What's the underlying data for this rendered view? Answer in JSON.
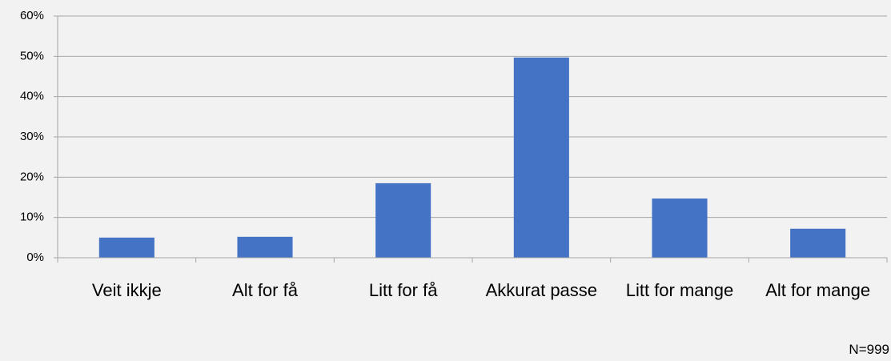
{
  "chart_data": {
    "type": "bar",
    "categories": [
      "Veit ikkje",
      "Alt for få",
      "Litt for få",
      "Akkurat passe",
      "Litt for mange",
      "Alt for mange"
    ],
    "values": [
      5.0,
      5.2,
      18.5,
      49.7,
      14.7,
      7.2
    ],
    "color": "#4472c4",
    "ylim": [
      0,
      60
    ],
    "yticks": [
      {
        "value": 0,
        "label": "0%"
      },
      {
        "value": 10,
        "label": "10%"
      },
      {
        "value": 20,
        "label": "20%"
      },
      {
        "value": 30,
        "label": "30%"
      },
      {
        "value": 40,
        "label": "40%"
      },
      {
        "value": 50,
        "label": "50%"
      },
      {
        "value": 60,
        "label": "60%"
      }
    ],
    "grid": true,
    "annotation": "N=999"
  }
}
